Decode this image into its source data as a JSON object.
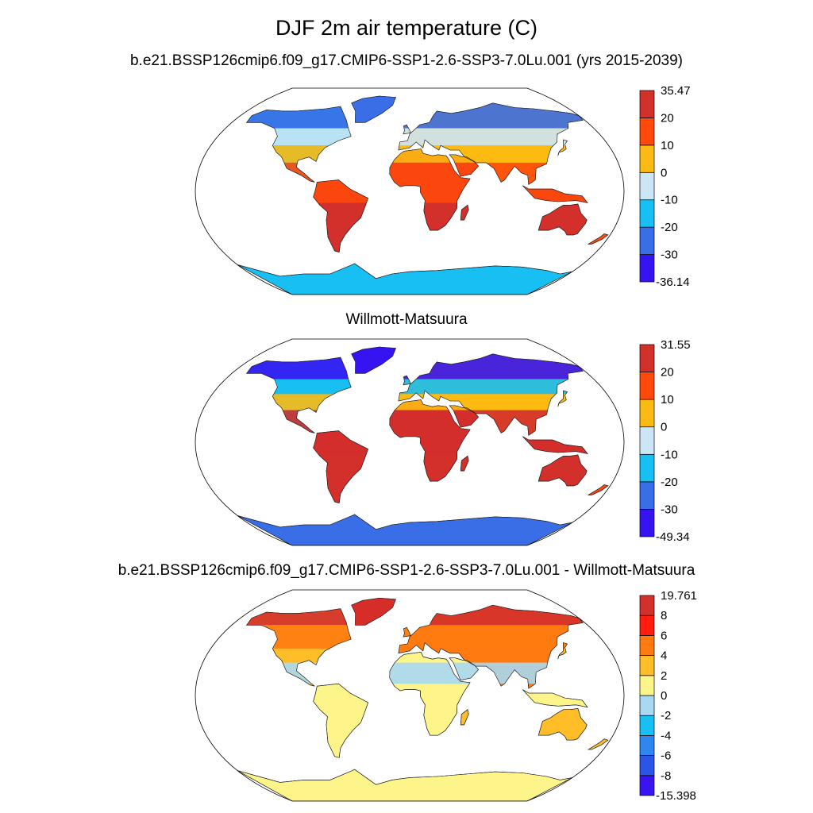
{
  "figure": {
    "title": "DJF 2m air temperature (C)",
    "panels": [
      {
        "title": "b.e21.BSSP126cmip6.f09_g17.CMIP6-SSP1-2.6-SSP3-7.0Lu.001 (yrs 2015-2039)",
        "colorbar": {
          "max_label": "35.47",
          "min_label": "-36.14",
          "levels": [
            "20",
            "10",
            "0",
            "-10",
            "-20",
            "-30"
          ],
          "colors": [
            "#3614f2",
            "#3a6ee6",
            "#17bff2",
            "#cce6f5",
            "#fdba12",
            "#ff4a0a",
            "#d32f2b"
          ]
        }
      },
      {
        "title": "Willmott-Matsuura",
        "colorbar": {
          "max_label": "31.55",
          "min_label": "-49.34",
          "levels": [
            "20",
            "10",
            "0",
            "-10",
            "-20",
            "-30"
          ],
          "colors": [
            "#3614f2",
            "#3a6ee6",
            "#17bff2",
            "#cce6f5",
            "#fdba12",
            "#ff4a0a",
            "#d32f2b"
          ]
        }
      },
      {
        "title": "b.e21.BSSP126cmip6.f09_g17.CMIP6-SSP1-2.6-SSP3-7.0Lu.001 - Willmott-Matsuura",
        "colorbar": {
          "max_label": "19.761",
          "min_label": "-15.398",
          "levels": [
            "8",
            "6",
            "4",
            "2",
            "0",
            "-2",
            "-4",
            "-6",
            "-8"
          ],
          "colors": [
            "#3a14f0",
            "#2a55e6",
            "#2e86f0",
            "#18bff2",
            "#a8d8f2",
            "#fdf58a",
            "#ffbd28",
            "#ff7a10",
            "#ff1e0e",
            "#d32f2b"
          ]
        }
      }
    ]
  }
}
